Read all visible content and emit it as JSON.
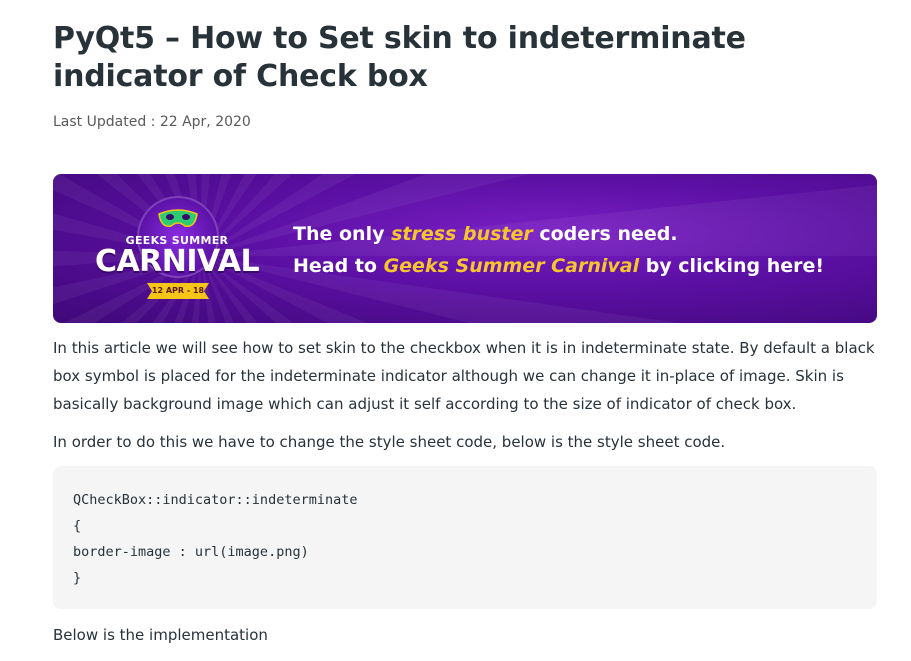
{
  "article": {
    "title": "PyQt5 – How to Set skin to indeterminate indicator of Check box",
    "last_updated": "Last Updated : 22 Apr, 2020",
    "banner": {
      "logo_top": "GEEKS SUMMER",
      "logo_main": "CARNIVAL",
      "logo_dates": "12 APR - 18 APR",
      "line1_prefix": "The only ",
      "line1_highlight": "stress buster",
      "line1_suffix": " coders need.",
      "line2_prefix": "Head to ",
      "line2_highlight": "Geeks Summer Carnival",
      "line2_suffix": " by clicking here!"
    },
    "paragraph1": "In this article we will see how to set skin to the checkbox when it is in indeterminate state. By default a black box symbol is placed for the indeterminate indicator although we can change it in-place of image. Skin is basically background image which can adjust it self according to the size of indicator of check box.",
    "paragraph2": "In order to do this we have to change the style sheet code, below is the style sheet code.",
    "code_lines": [
      "QCheckBox::indicator::indeterminate",
      "{",
      "border-image : url(image.png)",
      "}"
    ],
    "paragraph3": "Below is the implementation"
  },
  "colors": {
    "text": "#273239",
    "banner_bg": "#5b0fa3",
    "banner_highlight": "#f7c52d",
    "code_bg": "#f5f5f5"
  }
}
